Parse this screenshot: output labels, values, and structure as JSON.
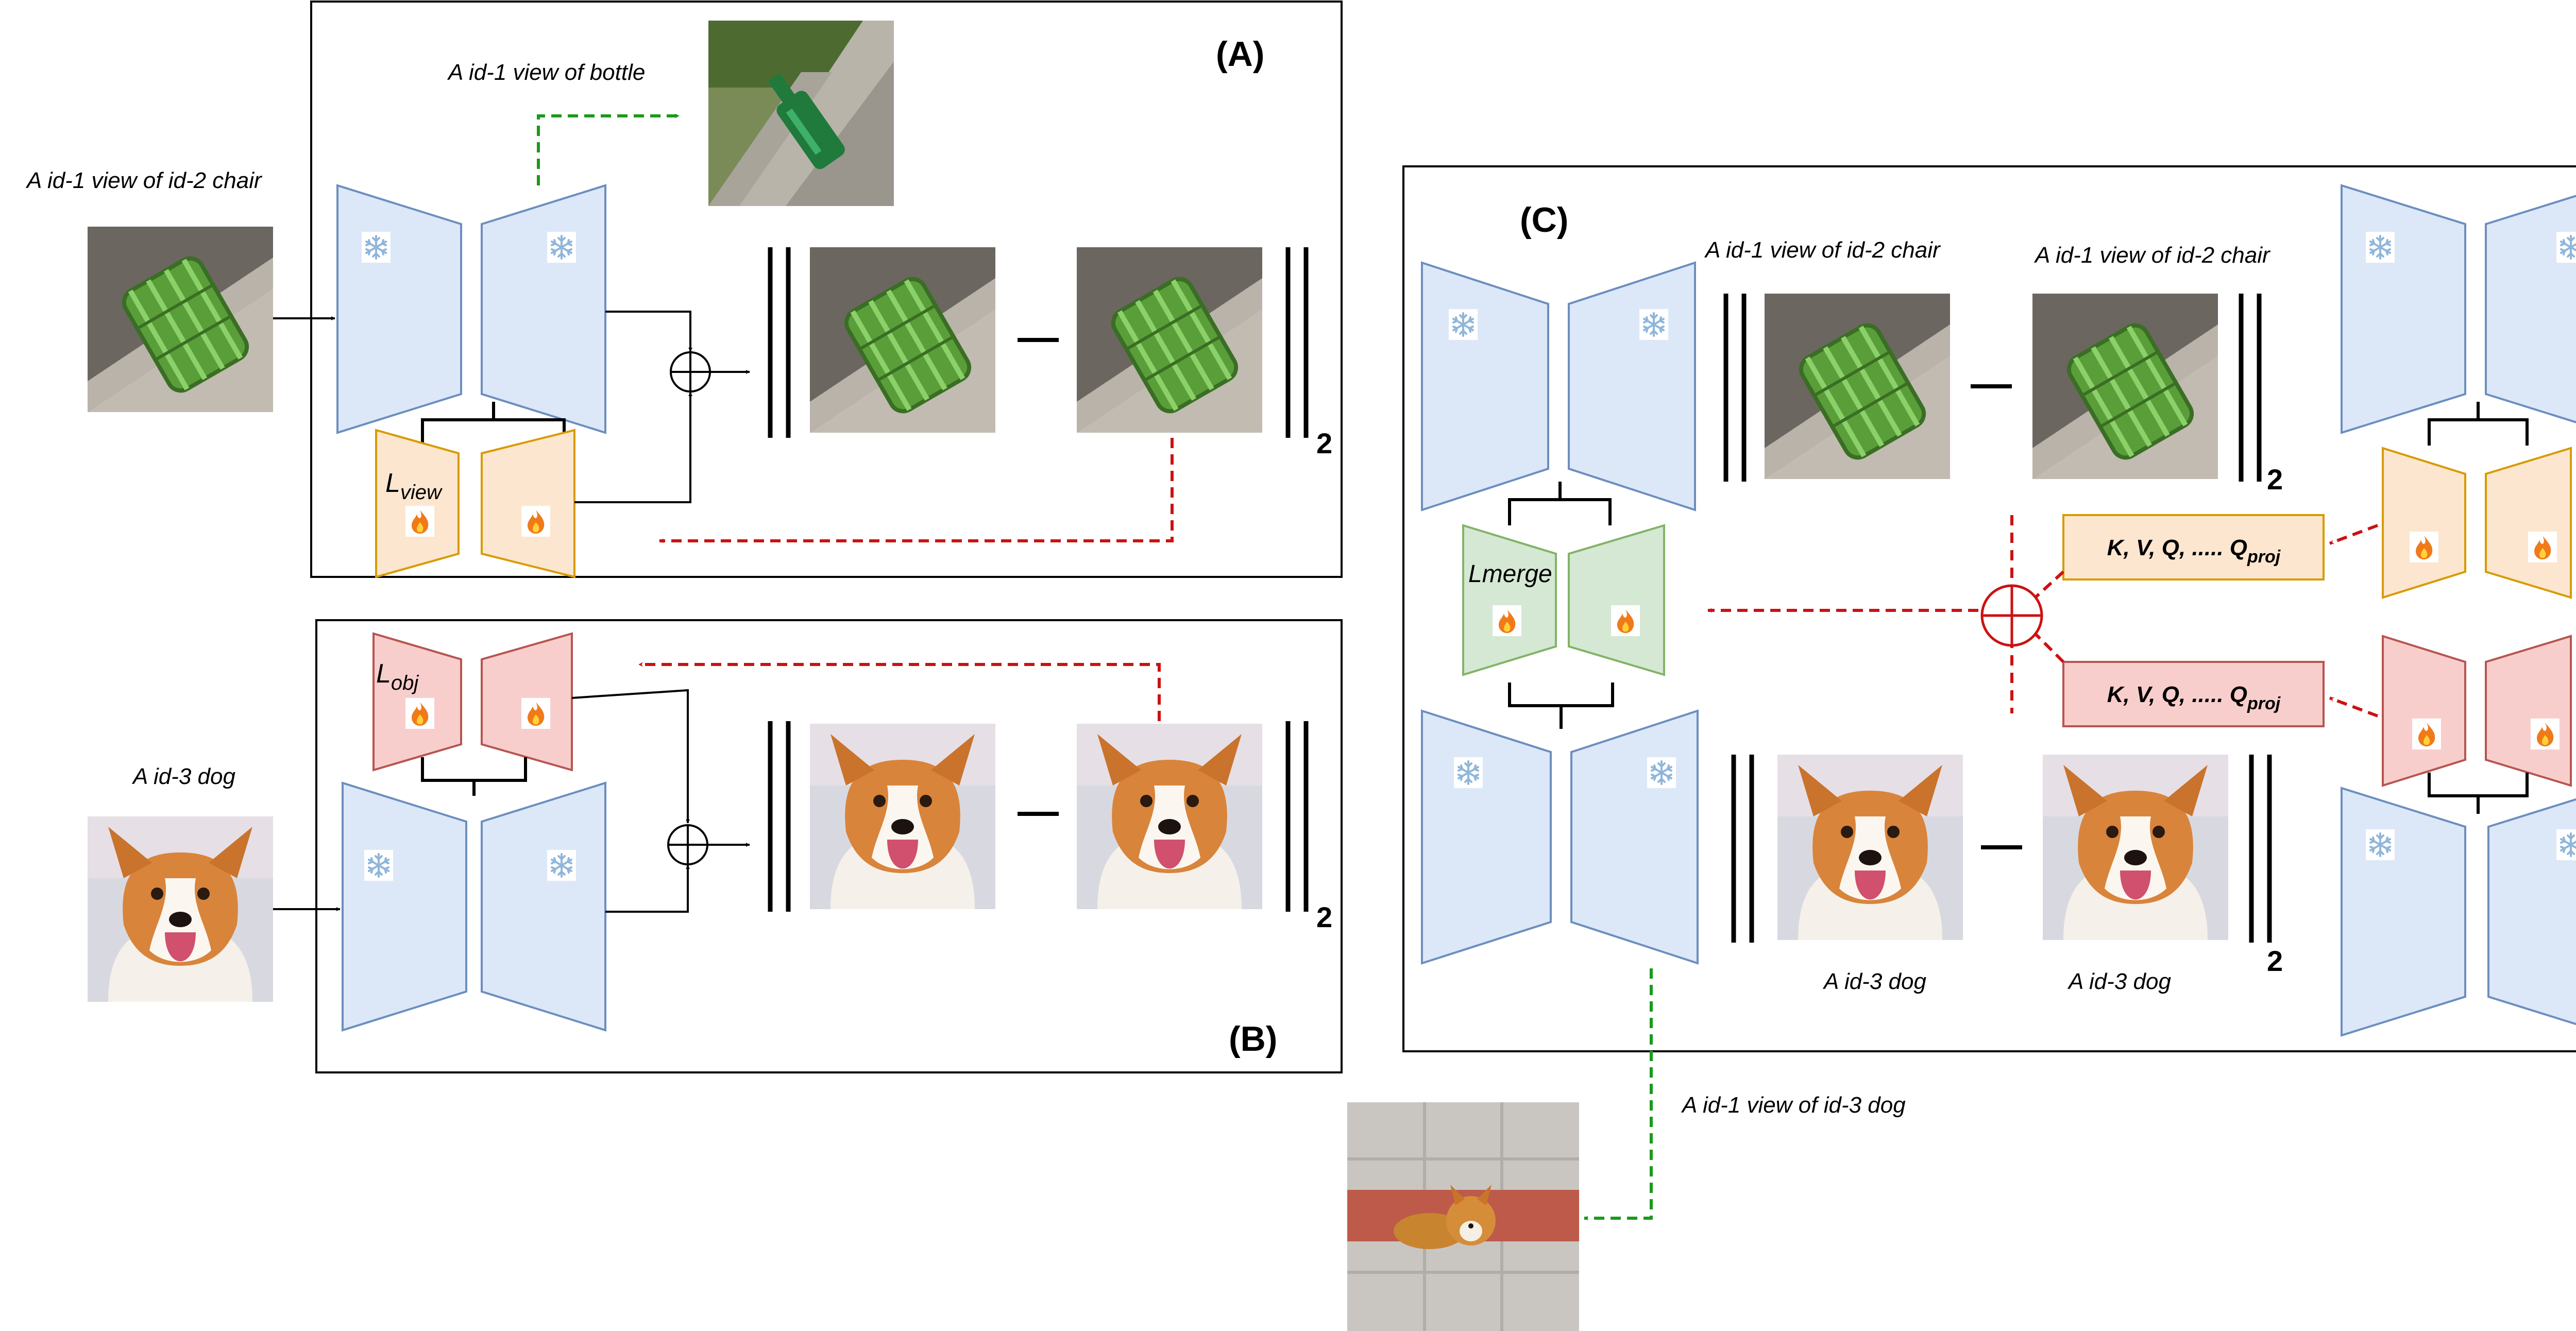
{
  "panels": {
    "A": {
      "tag": "(A)"
    },
    "B": {
      "tag": "(B)"
    },
    "C": {
      "tag": "(C)"
    }
  },
  "labels": {
    "input_chair": "A id-1 view of  id-2 chair",
    "bottle": "A id-1 view of bottle",
    "input_dog": "A id-3 dog",
    "c_chair_1": "A id-1 view of  id-2 chair",
    "c_chair_2": "A id-1 view of  id-2 chair",
    "c_dog_1": "A id-3 dog",
    "c_dog_2": "A id-3 dog",
    "output": "A id-1 view of  id-3 dog"
  },
  "lora": {
    "view": {
      "main": "L",
      "sub": "view"
    },
    "obj": {
      "main": "L",
      "sub": "obj"
    },
    "merge": {
      "main": "Lmerge"
    }
  },
  "proj_boxes": {
    "orange": {
      "text": "K, V, Q, ..... Q",
      "sub": "proj"
    },
    "red": {
      "text": "K, V, Q, ..... Q",
      "sub": "proj"
    }
  },
  "norm_subscript": "2",
  "icons": {
    "frozen": "snowflake-icon",
    "trainable": "fire-icon",
    "sum": "circle-plus-icon"
  },
  "colors": {
    "frozen_fill": "#dce8f8",
    "frozen_stroke": "#6c8ebf",
    "view_fill": "#fde6cf",
    "view_stroke": "#d79b00",
    "obj_fill": "#f8cecc",
    "obj_stroke": "#b85450",
    "merge_fill": "#d5e8d4",
    "merge_stroke": "#82b366",
    "green_arrow": "#1a9a1a",
    "red_arrow": "#cc1111",
    "proj_orange_fill": "#fde6cf",
    "proj_red_fill": "#f8cecc"
  }
}
